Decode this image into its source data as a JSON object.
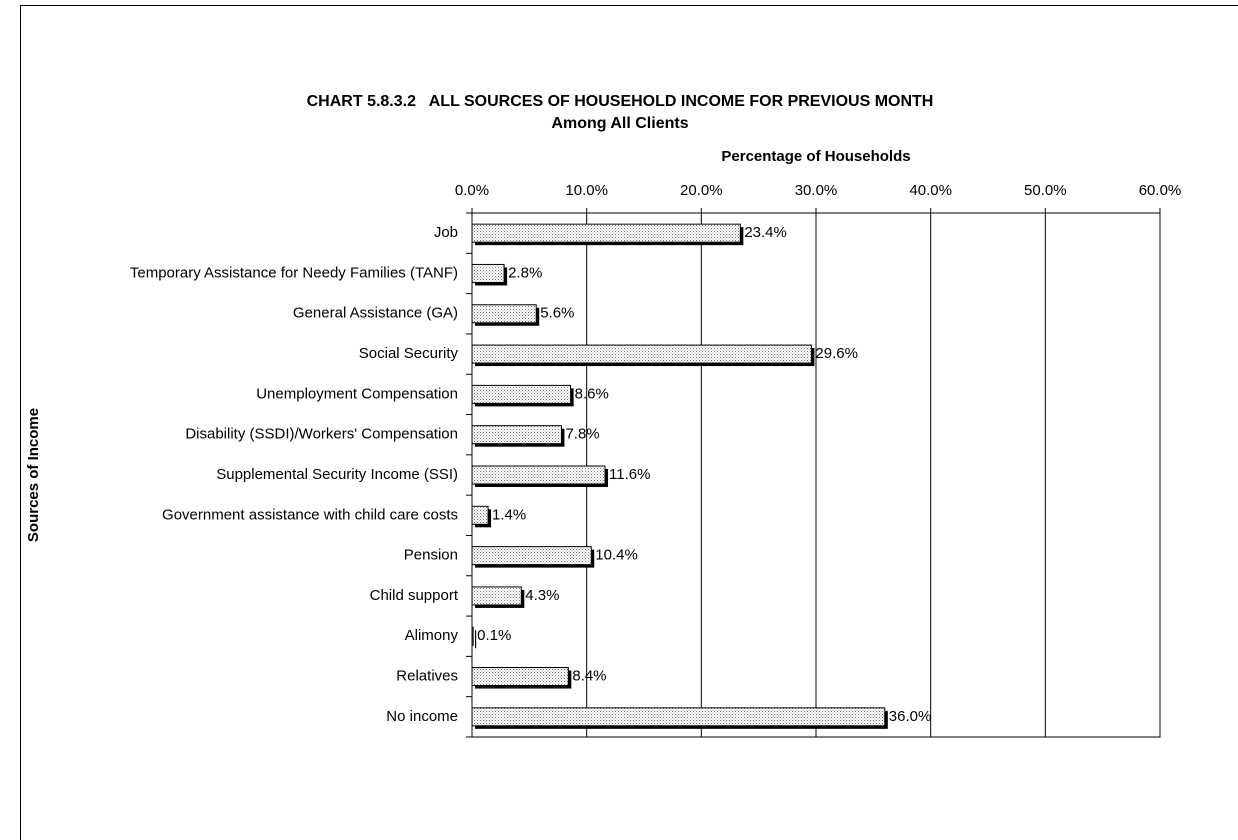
{
  "chart_data": {
    "type": "bar",
    "orientation": "horizontal",
    "title": "CHART 5.8.3.2   ALL SOURCES OF HOUSEHOLD INCOME FOR PREVIOUS MONTH",
    "subtitle": "Among All Clients",
    "x_label": "Percentage of Households",
    "y_label": "Sources of Income",
    "categories": [
      "Job",
      "Temporary Assistance for Needy Families (TANF)",
      "General Assistance (GA)",
      "Social Security",
      "Unemployment Compensation",
      "Disability (SSDI)/Workers' Compensation",
      "Supplemental Security Income (SSI)",
      "Government assistance with child care costs",
      "Pension",
      "Child support",
      "Alimony",
      "Relatives",
      "No income"
    ],
    "values": [
      23.4,
      2.8,
      5.6,
      29.6,
      8.6,
      7.8,
      11.6,
      1.4,
      10.4,
      4.3,
      0.1,
      8.4,
      36.0
    ],
    "value_labels": [
      "23.4%",
      "2.8%",
      "5.6%",
      "29.6%",
      "8.6%",
      "7.8%",
      "11.6%",
      "1.4%",
      "10.4%",
      "4.3%",
      "0.1%",
      "8.4%",
      "36.0%"
    ],
    "xlim": [
      0,
      60
    ],
    "xticks": [
      {
        "value": 0,
        "label": "0.0%"
      },
      {
        "value": 10,
        "label": "10.0%"
      },
      {
        "value": 20,
        "label": "20.0%"
      },
      {
        "value": 30,
        "label": "30.0%"
      },
      {
        "value": 40,
        "label": "40.0%"
      },
      {
        "value": 50,
        "label": "50.0%"
      },
      {
        "value": 60,
        "label": "60.0%"
      }
    ],
    "grid": true,
    "color": "#e8e8e8"
  }
}
